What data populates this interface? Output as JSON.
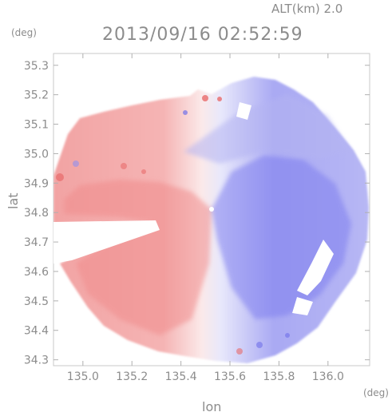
{
  "header": {
    "alt_label": "ALT(km)  2.0",
    "timestamp": "2013/09/16  02:52:59",
    "y_unit": "(deg)",
    "x_unit": "(deg)"
  },
  "chart_data": {
    "type": "heatmap",
    "xlabel": "lon",
    "ylabel": "lat",
    "xlim": [
      134.88,
      136.17
    ],
    "ylim": [
      34.28,
      35.34
    ],
    "x_ticks": [
      "135.0",
      "135.2",
      "135.4",
      "135.6",
      "135.8",
      "136.0"
    ],
    "x_tick_values": [
      135.0,
      135.2,
      135.4,
      135.6,
      135.8,
      136.0
    ],
    "y_ticks": [
      "34.3",
      "34.4",
      "34.5",
      "34.6",
      "34.7",
      "34.8",
      "34.9",
      "35.0",
      "35.1",
      "35.2",
      "35.3"
    ],
    "y_tick_values": [
      34.3,
      34.4,
      34.5,
      34.6,
      34.7,
      34.8,
      34.9,
      35.0,
      35.1,
      35.2,
      35.3
    ],
    "radar_center": {
      "lon": 135.53,
      "lat": 34.82
    },
    "colors": {
      "receding": "#f08c8c",
      "approaching": "#7f7fef",
      "neutral": "#ffffff",
      "frame": "#c8c8c8"
    }
  }
}
